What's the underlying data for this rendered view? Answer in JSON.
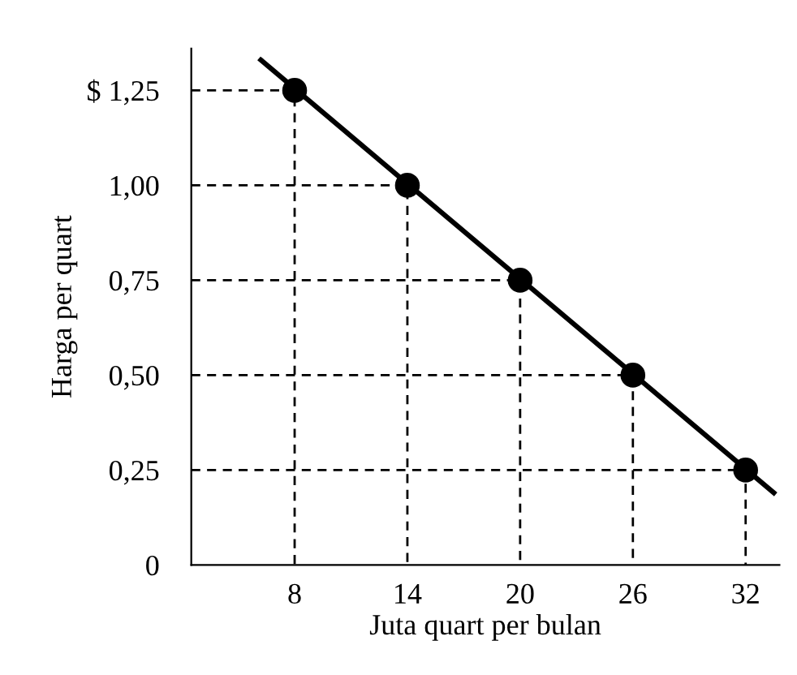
{
  "chart_data": {
    "type": "scatter",
    "xlabel": "Juta quart per bulan",
    "ylabel": "Harga per quart",
    "x": [
      8,
      14,
      20,
      26,
      32
    ],
    "series": [
      {
        "type": "line",
        "color": "#000000",
        "line_style": "dashed",
        "x": [
          2.5,
          8,
          8
        ],
        "values": [
          1.25,
          1.25,
          0
        ]
      },
      {
        "type": "line",
        "color": "#000000",
        "line_style": "dashed",
        "x": [
          2.5,
          14,
          14
        ],
        "values": [
          1.0,
          1.0,
          0
        ]
      },
      {
        "type": "line",
        "color": "#000000",
        "line_style": "dashed",
        "x": [
          2.5,
          20,
          20
        ],
        "values": [
          0.75,
          0.75,
          0
        ]
      },
      {
        "type": "line",
        "color": "#000000",
        "line_style": "dashed",
        "x": [
          2.5,
          26,
          26
        ],
        "values": [
          0.5,
          0.5,
          0
        ]
      },
      {
        "type": "line",
        "color": "#000000",
        "line_style": "dashed",
        "x": [
          2.5,
          32,
          32
        ],
        "values": [
          0.25,
          0.25,
          0
        ]
      },
      {
        "color": "#000000",
        "marker": "circle",
        "values": [
          1.25,
          1.0,
          0.75,
          0.5,
          0.25
        ]
      },
      {
        "type": "line",
        "color": "#000000",
        "line_style": "solid",
        "x": [
          6.2,
          33.5
        ],
        "values": [
          1.33,
          0.19
        ]
      }
    ],
    "xlim": [
      2.5,
      33.8
    ],
    "ylim": [
      0,
      1.36
    ],
    "xticks": [
      8,
      14,
      20,
      26,
      32
    ],
    "yticks": [
      {
        "value": 0,
        "label": "0"
      },
      {
        "value": 0.25,
        "label": "0,25"
      },
      {
        "value": 0.5,
        "label": "0,50"
      },
      {
        "value": 0.75,
        "label": "0,75"
      },
      {
        "value": 1.0,
        "label": "1,00"
      },
      {
        "value": 1.25,
        "label": "$ 1,25"
      }
    ]
  }
}
